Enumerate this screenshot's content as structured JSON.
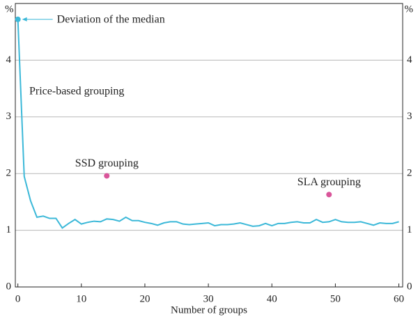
{
  "chart_data": {
    "type": "line",
    "x_label": "Number of groups",
    "y_unit": "%",
    "annotation": "Deviation of the median",
    "xlim": [
      -0.4,
      60.6
    ],
    "xticks": [
      0,
      10,
      20,
      30,
      40,
      50,
      60
    ],
    "ylim": [
      0,
      5
    ],
    "yticks": [
      0,
      1,
      2,
      3,
      4
    ],
    "grid": true,
    "series": [
      {
        "name": "Price-based grouping",
        "type": "line",
        "color": "#3bb8d8",
        "x": [
          0,
          1,
          2,
          3,
          4,
          5,
          6,
          7,
          8,
          9,
          10,
          11,
          12,
          13,
          14,
          15,
          16,
          17,
          18,
          19,
          20,
          21,
          22,
          23,
          24,
          25,
          26,
          27,
          28,
          29,
          30,
          31,
          32,
          33,
          34,
          35,
          36,
          37,
          38,
          39,
          40,
          41,
          42,
          43,
          44,
          45,
          46,
          47,
          48,
          49,
          50,
          51,
          52,
          53,
          54,
          55,
          56,
          57,
          58,
          59,
          60
        ],
        "values": [
          4.72,
          1.95,
          1.52,
          1.23,
          1.25,
          1.21,
          1.21,
          1.04,
          1.12,
          1.19,
          1.11,
          1.14,
          1.16,
          1.15,
          1.2,
          1.19,
          1.16,
          1.23,
          1.17,
          1.17,
          1.14,
          1.12,
          1.09,
          1.13,
          1.15,
          1.15,
          1.11,
          1.1,
          1.11,
          1.12,
          1.13,
          1.08,
          1.1,
          1.1,
          1.11,
          1.13,
          1.1,
          1.07,
          1.08,
          1.12,
          1.08,
          1.12,
          1.12,
          1.14,
          1.15,
          1.13,
          1.13,
          1.19,
          1.14,
          1.15,
          1.19,
          1.15,
          1.14,
          1.14,
          1.15,
          1.12,
          1.09,
          1.13,
          1.12,
          1.12,
          1.15
        ]
      },
      {
        "name": "SSD grouping",
        "type": "scatter",
        "color": "#d9559a",
        "x": [
          14
        ],
        "values": [
          1.96
        ]
      },
      {
        "name": "SLA grouping",
        "type": "scatter",
        "color": "#d9559a",
        "x": [
          49
        ],
        "values": [
          1.63
        ]
      }
    ]
  }
}
